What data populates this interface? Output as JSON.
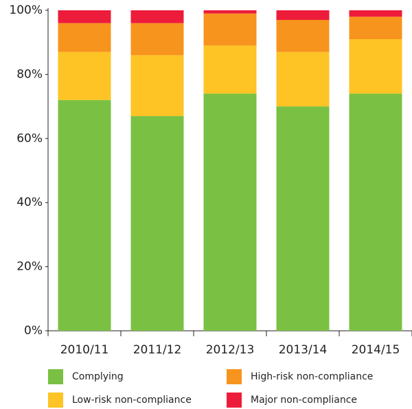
{
  "chart_data": {
    "type": "stacked_bar",
    "categories": [
      "2010/11",
      "2011/12",
      "2012/13",
      "2013/14",
      "2014/15"
    ],
    "series": [
      {
        "name": "Complying",
        "color": "#7ac143",
        "values": [
          72,
          67,
          74,
          70,
          74
        ]
      },
      {
        "name": "Low-risk non-compliance",
        "color": "#fec325",
        "values": [
          15,
          19,
          15,
          17,
          17
        ]
      },
      {
        "name": "High-risk non-compliance",
        "color": "#f7941d",
        "values": [
          9,
          10,
          10,
          10,
          7
        ]
      },
      {
        "name": "Major non-compliance",
        "color": "#ed1c3a",
        "values": [
          4,
          4,
          1,
          3,
          2
        ]
      }
    ],
    "ylim": [
      0,
      100
    ],
    "yticks": [
      {
        "value": 0,
        "label": "0%"
      },
      {
        "value": 20,
        "label": "20%"
      },
      {
        "value": 40,
        "label": "40%"
      },
      {
        "value": 60,
        "label": "60%"
      },
      {
        "value": 80,
        "label": "80%"
      },
      {
        "value": 100,
        "label": "100%"
      }
    ],
    "grid": false
  }
}
